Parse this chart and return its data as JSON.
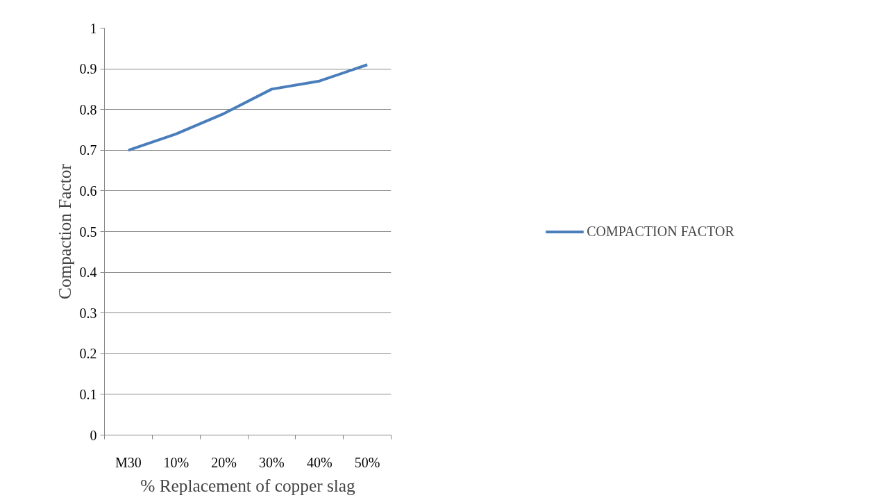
{
  "chart_data": {
    "type": "line",
    "xlabel": "% Replacement of copper slag",
    "ylabel": "Compaction Factor",
    "categories": [
      "M30",
      "10%",
      "20%",
      "30%",
      "40%",
      "50%"
    ],
    "series": [
      {
        "name": "COMPACTION FACTOR",
        "color": "#4a7ebb",
        "values": [
          0.7,
          0.74,
          0.79,
          0.85,
          0.87,
          0.91
        ]
      }
    ],
    "ylim": [
      0,
      1
    ],
    "yticks": [
      0,
      0.1,
      0.2,
      0.3,
      0.4,
      0.5,
      0.6,
      0.7,
      0.8,
      0.9,
      1
    ],
    "grid": "y",
    "legend": "right",
    "marker": "none",
    "line_style": "solid"
  }
}
